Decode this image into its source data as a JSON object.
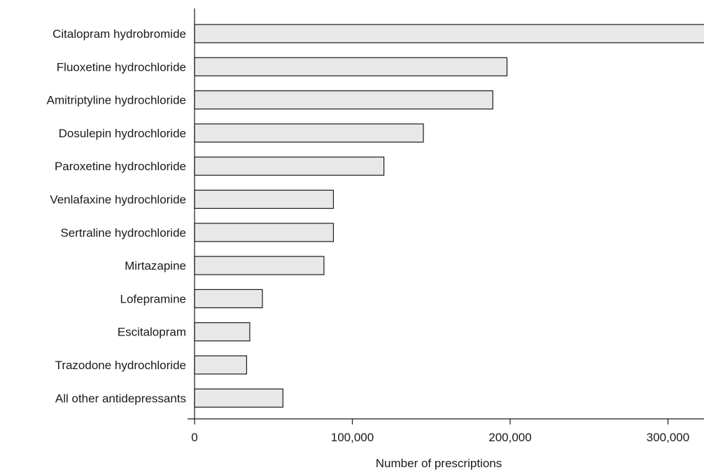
{
  "chart_data": {
    "type": "bar",
    "orientation": "horizontal",
    "categories": [
      "Citalopram hydrobromide",
      "Fluoxetine hydrochloride",
      "Amitriptyline hydrochloride",
      "Dosulepin hydrochloride",
      "Paroxetine hydrochloride",
      "Venlafaxine hydrochloride",
      "Sertraline hydrochloride",
      "Mirtazapine",
      "Lofepramine",
      "Escitalopram",
      "Trazodone hydrochloride",
      "All other antidepressants"
    ],
    "values": [
      325000,
      198000,
      189000,
      145000,
      120000,
      88000,
      88000,
      82000,
      43000,
      35000,
      33000,
      56000
    ],
    "title": "",
    "xlabel": "Number of prescriptions",
    "ylabel": "",
    "xlim": [
      0,
      320000
    ],
    "xticks": [
      0,
      100000,
      200000,
      300000
    ],
    "xtick_labels": [
      "0",
      "100,000",
      "200,000",
      "300,000"
    ],
    "grid": false,
    "colors": {
      "bar_fill": "#e8e8e8",
      "bar_stroke": "#1a1a1a",
      "axis": "#1a1a1a"
    }
  }
}
